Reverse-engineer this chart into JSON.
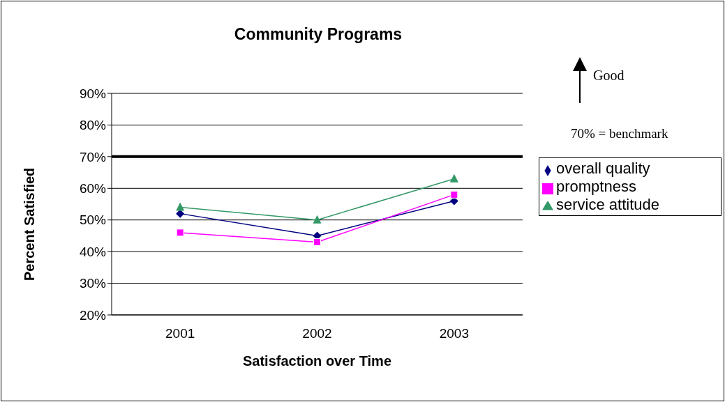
{
  "chart_data": {
    "type": "line",
    "title": "Community Programs",
    "xlabel": "Satisfaction over Time",
    "ylabel": "Percent Satisfied",
    "categories": [
      "2001",
      "2002",
      "2003"
    ],
    "series": [
      {
        "name": "overall quality",
        "color": "#000080",
        "marker": "diamond",
        "values": [
          52,
          45,
          56
        ]
      },
      {
        "name": "promptness",
        "color": "#ff00ff",
        "marker": "square",
        "values": [
          46,
          43,
          58
        ]
      },
      {
        "name": "service attitude",
        "color": "#339966",
        "marker": "triangle",
        "values": [
          54,
          50,
          63
        ]
      }
    ],
    "ylim": [
      20,
      90
    ],
    "yticks": [
      {
        "value": 20,
        "label": "20%"
      },
      {
        "value": 30,
        "label": "30%"
      },
      {
        "value": 40,
        "label": "40%"
      },
      {
        "value": 50,
        "label": "50%"
      },
      {
        "value": 60,
        "label": "60%"
      },
      {
        "value": 70,
        "label": "70%"
      },
      {
        "value": 80,
        "label": "80%"
      },
      {
        "value": 90,
        "label": "90%"
      }
    ],
    "grid": "y",
    "legend": "right",
    "ref_lines": [
      {
        "axis": "y",
        "value": 70,
        "color": "#000000"
      }
    ],
    "annotations": [
      "Good",
      "70% = benchmark"
    ]
  }
}
